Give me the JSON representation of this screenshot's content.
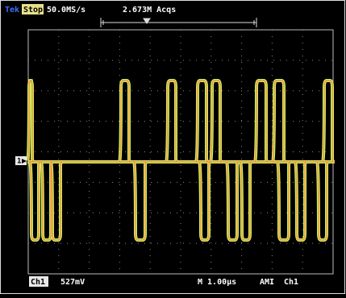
{
  "header": {
    "brand": "Tek",
    "status": "Stop",
    "sample_rate": "50.0MS/s",
    "acquisitions": "2.673M Acqs"
  },
  "marker": "1",
  "footer": {
    "channel": "Ch1",
    "scale": "527mV",
    "timebase": "M 1.00µs",
    "trigger_mode": "AMI",
    "trigger_source": "Ch1"
  }
}
